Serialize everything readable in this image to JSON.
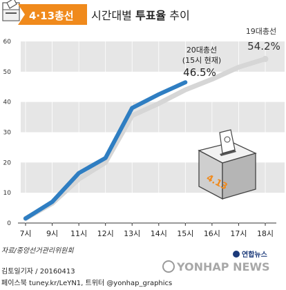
{
  "header": {
    "badge": "4·13총선",
    "title_part1": "시간대별 ",
    "title_part2": "투표율",
    "title_part3": " 추이"
  },
  "chart_data": {
    "type": "line",
    "categories": [
      "7시",
      "9시",
      "11시",
      "12시",
      "13시",
      "14시",
      "15시",
      "16시",
      "17시",
      "18시"
    ],
    "ylim": [
      0,
      60
    ],
    "y_ticks": [
      "0",
      "10",
      "20",
      "30",
      "40",
      "50",
      "60"
    ],
    "series": [
      {
        "name": "19대총선",
        "values": [
          1.5,
          6.5,
          14.5,
          20,
          35.5,
          39.5,
          44,
          47.5,
          51.5,
          54.2
        ],
        "color": "#d6d6d6"
      },
      {
        "name": "20대총선",
        "values": [
          1.5,
          7,
          16.5,
          21.5,
          38,
          42.5,
          46.5,
          null,
          null,
          null
        ],
        "color": "#2f7ec2"
      }
    ],
    "annotations": {
      "s20_line1": "20대총선",
      "s20_line2": "(15시 현재)",
      "s20_value": "46.5%",
      "s19_line1": "19대총선",
      "s19_value": "54.2%"
    },
    "grid": "alternating-bands"
  },
  "ballot_box": {
    "label": "4.13"
  },
  "source": "자료/중앙선거관리위원회",
  "credit": "김토일기자 / 20160413",
  "social": "페이스북 tuney.kr/LeYN1, 트위터 @yonhap_graphics",
  "logo": {
    "small": "연합뉴스",
    "big": "YONHAP NEWS"
  },
  "colors": {
    "accent": "#f08a1c",
    "s20": "#2f7ec2",
    "s19": "#d6d6d6",
    "band": "#e6e6e6"
  }
}
